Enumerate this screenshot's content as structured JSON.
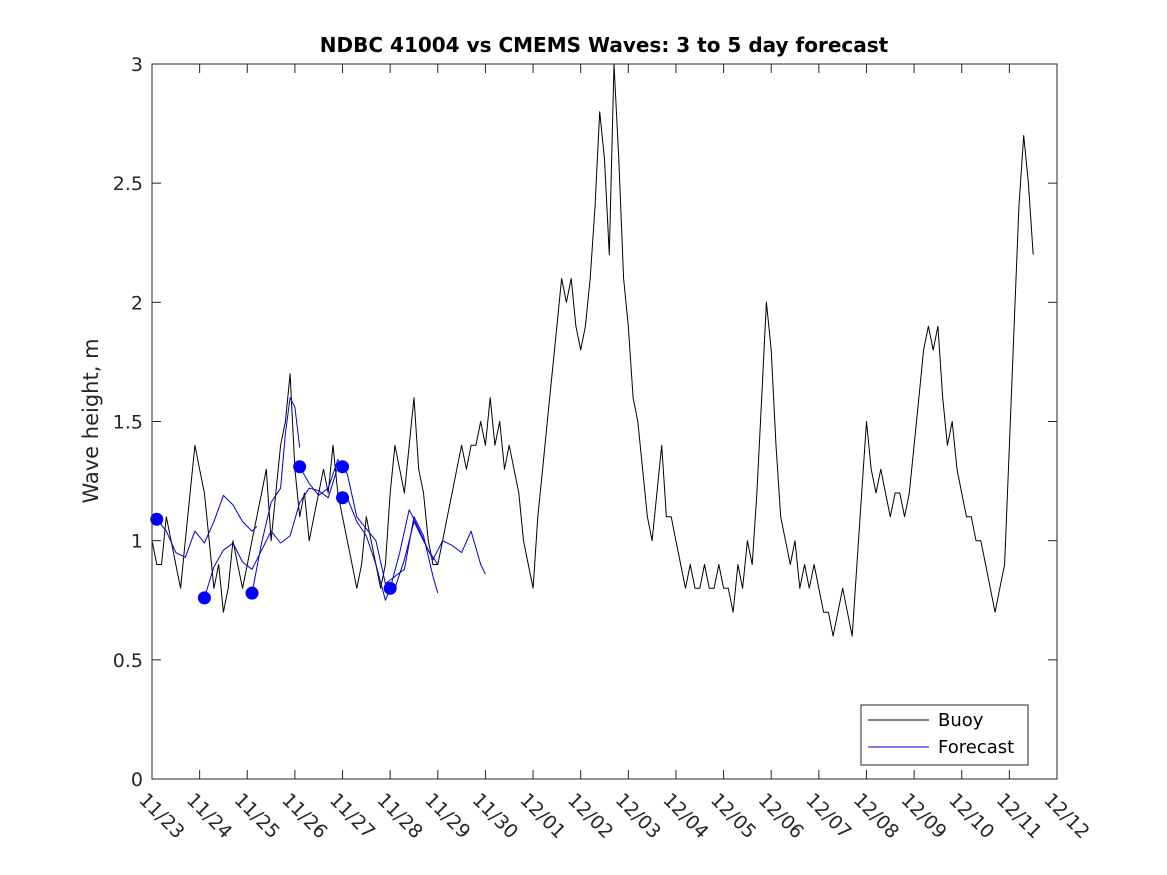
{
  "chart_data": {
    "type": "line",
    "title": "NDBC 41004 vs CMEMS Waves: 3 to 5 day forecast",
    "xlabel": "",
    "ylabel": "Wave height, m",
    "xlim": [
      0,
      19
    ],
    "ylim": [
      0,
      3
    ],
    "x_ticks": [
      {
        "x": 0,
        "label": "11/23"
      },
      {
        "x": 1,
        "label": "11/24"
      },
      {
        "x": 2,
        "label": "11/25"
      },
      {
        "x": 3,
        "label": "11/26"
      },
      {
        "x": 4,
        "label": "11/27"
      },
      {
        "x": 5,
        "label": "11/28"
      },
      {
        "x": 6,
        "label": "11/29"
      },
      {
        "x": 7,
        "label": "11/30"
      },
      {
        "x": 8,
        "label": "12/01"
      },
      {
        "x": 9,
        "label": "12/02"
      },
      {
        "x": 10,
        "label": "12/03"
      },
      {
        "x": 11,
        "label": "12/04"
      },
      {
        "x": 12,
        "label": "12/05"
      },
      {
        "x": 13,
        "label": "12/06"
      },
      {
        "x": 14,
        "label": "12/07"
      },
      {
        "x": 15,
        "label": "12/08"
      },
      {
        "x": 16,
        "label": "12/09"
      },
      {
        "x": 17,
        "label": "12/10"
      },
      {
        "x": 18,
        "label": "12/11"
      },
      {
        "x": 19,
        "label": "12/12"
      }
    ],
    "y_ticks": [
      {
        "y": 0,
        "label": "0"
      },
      {
        "y": 0.5,
        "label": "0.5"
      },
      {
        "y": 1,
        "label": "1"
      },
      {
        "y": 1.5,
        "label": "1.5"
      },
      {
        "y": 2,
        "label": "2"
      },
      {
        "y": 2.5,
        "label": "2.5"
      },
      {
        "y": 3,
        "label": "3"
      }
    ],
    "legend": {
      "position": "bottom-right",
      "entries": [
        {
          "label": "Buoy",
          "color": "#000000"
        },
        {
          "label": "Forecast",
          "color": "#0000cc"
        }
      ]
    },
    "series": [
      {
        "name": "Buoy",
        "color": "#000000",
        "points": [
          [
            0.0,
            1.0
          ],
          [
            0.1,
            0.9
          ],
          [
            0.2,
            0.9
          ],
          [
            0.3,
            1.1
          ],
          [
            0.4,
            1.0
          ],
          [
            0.5,
            0.9
          ],
          [
            0.6,
            0.8
          ],
          [
            0.7,
            1.0
          ],
          [
            0.8,
            1.2
          ],
          [
            0.9,
            1.4
          ],
          [
            1.0,
            1.3
          ],
          [
            1.1,
            1.2
          ],
          [
            1.2,
            1.0
          ],
          [
            1.3,
            0.8
          ],
          [
            1.4,
            0.9
          ],
          [
            1.5,
            0.7
          ],
          [
            1.6,
            0.8
          ],
          [
            1.7,
            1.0
          ],
          [
            1.8,
            0.9
          ],
          [
            1.9,
            0.8
          ],
          [
            2.0,
            0.9
          ],
          [
            2.1,
            1.0
          ],
          [
            2.2,
            1.1
          ],
          [
            2.3,
            1.2
          ],
          [
            2.4,
            1.3
          ],
          [
            2.5,
            1.0
          ],
          [
            2.6,
            1.2
          ],
          [
            2.7,
            1.4
          ],
          [
            2.8,
            1.5
          ],
          [
            2.9,
            1.7
          ],
          [
            3.0,
            1.3
          ],
          [
            3.1,
            1.1
          ],
          [
            3.2,
            1.2
          ],
          [
            3.3,
            1.0
          ],
          [
            3.4,
            1.1
          ],
          [
            3.5,
            1.2
          ],
          [
            3.6,
            1.3
          ],
          [
            3.7,
            1.2
          ],
          [
            3.8,
            1.4
          ],
          [
            3.9,
            1.2
          ],
          [
            4.0,
            1.1
          ],
          [
            4.1,
            1.0
          ],
          [
            4.2,
            0.9
          ],
          [
            4.3,
            0.8
          ],
          [
            4.4,
            0.9
          ],
          [
            4.5,
            1.1
          ],
          [
            4.6,
            1.0
          ],
          [
            4.7,
            0.9
          ],
          [
            4.8,
            0.8
          ],
          [
            4.9,
            0.9
          ],
          [
            5.0,
            1.2
          ],
          [
            5.1,
            1.4
          ],
          [
            5.2,
            1.3
          ],
          [
            5.3,
            1.2
          ],
          [
            5.4,
            1.4
          ],
          [
            5.5,
            1.6
          ],
          [
            5.6,
            1.3
          ],
          [
            5.7,
            1.2
          ],
          [
            5.8,
            1.0
          ],
          [
            5.9,
            0.9
          ],
          [
            6.0,
            0.9
          ],
          [
            6.1,
            1.0
          ],
          [
            6.2,
            1.1
          ],
          [
            6.3,
            1.2
          ],
          [
            6.4,
            1.3
          ],
          [
            6.5,
            1.4
          ],
          [
            6.6,
            1.3
          ],
          [
            6.7,
            1.4
          ],
          [
            6.8,
            1.4
          ],
          [
            6.9,
            1.5
          ],
          [
            7.0,
            1.4
          ],
          [
            7.1,
            1.6
          ],
          [
            7.2,
            1.4
          ],
          [
            7.3,
            1.5
          ],
          [
            7.4,
            1.3
          ],
          [
            7.5,
            1.4
          ],
          [
            7.6,
            1.3
          ],
          [
            7.7,
            1.2
          ],
          [
            7.8,
            1.0
          ],
          [
            7.9,
            0.9
          ],
          [
            8.0,
            0.8
          ],
          [
            8.1,
            1.1
          ],
          [
            8.2,
            1.3
          ],
          [
            8.3,
            1.5
          ],
          [
            8.4,
            1.7
          ],
          [
            8.5,
            1.9
          ],
          [
            8.6,
            2.1
          ],
          [
            8.7,
            2.0
          ],
          [
            8.8,
            2.1
          ],
          [
            8.9,
            1.9
          ],
          [
            9.0,
            1.8
          ],
          [
            9.1,
            1.9
          ],
          [
            9.2,
            2.1
          ],
          [
            9.3,
            2.4
          ],
          [
            9.4,
            2.8
          ],
          [
            9.5,
            2.6
          ],
          [
            9.6,
            2.2
          ],
          [
            9.7,
            3.0
          ],
          [
            9.8,
            2.6
          ],
          [
            9.9,
            2.1
          ],
          [
            10.0,
            1.9
          ],
          [
            10.1,
            1.6
          ],
          [
            10.2,
            1.5
          ],
          [
            10.3,
            1.3
          ],
          [
            10.4,
            1.1
          ],
          [
            10.5,
            1.0
          ],
          [
            10.6,
            1.2
          ],
          [
            10.7,
            1.4
          ],
          [
            10.8,
            1.1
          ],
          [
            10.9,
            1.1
          ],
          [
            11.0,
            1.0
          ],
          [
            11.1,
            0.9
          ],
          [
            11.2,
            0.8
          ],
          [
            11.3,
            0.9
          ],
          [
            11.4,
            0.8
          ],
          [
            11.5,
            0.8
          ],
          [
            11.6,
            0.9
          ],
          [
            11.7,
            0.8
          ],
          [
            11.8,
            0.8
          ],
          [
            11.9,
            0.9
          ],
          [
            12.0,
            0.8
          ],
          [
            12.1,
            0.8
          ],
          [
            12.2,
            0.7
          ],
          [
            12.3,
            0.9
          ],
          [
            12.4,
            0.8
          ],
          [
            12.5,
            1.0
          ],
          [
            12.6,
            0.9
          ],
          [
            12.7,
            1.2
          ],
          [
            12.8,
            1.6
          ],
          [
            12.9,
            2.0
          ],
          [
            13.0,
            1.8
          ],
          [
            13.1,
            1.4
          ],
          [
            13.2,
            1.1
          ],
          [
            13.3,
            1.0
          ],
          [
            13.4,
            0.9
          ],
          [
            13.5,
            1.0
          ],
          [
            13.6,
            0.8
          ],
          [
            13.7,
            0.9
          ],
          [
            13.8,
            0.8
          ],
          [
            13.9,
            0.9
          ],
          [
            14.0,
            0.8
          ],
          [
            14.1,
            0.7
          ],
          [
            14.2,
            0.7
          ],
          [
            14.3,
            0.6
          ],
          [
            14.4,
            0.7
          ],
          [
            14.5,
            0.8
          ],
          [
            14.6,
            0.7
          ],
          [
            14.7,
            0.6
          ],
          [
            14.8,
            0.9
          ],
          [
            14.9,
            1.2
          ],
          [
            15.0,
            1.5
          ],
          [
            15.1,
            1.3
          ],
          [
            15.2,
            1.2
          ],
          [
            15.3,
            1.3
          ],
          [
            15.4,
            1.2
          ],
          [
            15.5,
            1.1
          ],
          [
            15.6,
            1.2
          ],
          [
            15.7,
            1.2
          ],
          [
            15.8,
            1.1
          ],
          [
            15.9,
            1.2
          ],
          [
            16.0,
            1.4
          ],
          [
            16.1,
            1.6
          ],
          [
            16.2,
            1.8
          ],
          [
            16.3,
            1.9
          ],
          [
            16.4,
            1.8
          ],
          [
            16.5,
            1.9
          ],
          [
            16.6,
            1.6
          ],
          [
            16.7,
            1.4
          ],
          [
            16.8,
            1.5
          ],
          [
            16.9,
            1.3
          ],
          [
            17.0,
            1.2
          ],
          [
            17.1,
            1.1
          ],
          [
            17.2,
            1.1
          ],
          [
            17.3,
            1.0
          ],
          [
            17.4,
            1.0
          ],
          [
            17.5,
            0.9
          ],
          [
            17.6,
            0.8
          ],
          [
            17.7,
            0.7
          ],
          [
            17.8,
            0.8
          ],
          [
            17.9,
            0.9
          ],
          [
            18.0,
            1.4
          ],
          [
            18.1,
            1.9
          ],
          [
            18.2,
            2.4
          ],
          [
            18.3,
            2.7
          ],
          [
            18.4,
            2.5
          ],
          [
            18.5,
            2.2
          ]
        ]
      },
      {
        "name": "Forecast",
        "color": "#0000cc",
        "points": [
          [
            0.1,
            1.09
          ],
          [
            0.3,
            1.04
          ],
          [
            0.5,
            0.95
          ],
          [
            0.7,
            0.93
          ],
          [
            0.9,
            1.04
          ],
          [
            1.1,
            0.99
          ],
          [
            1.3,
            1.08
          ],
          [
            1.5,
            1.19
          ],
          [
            1.7,
            1.15
          ],
          [
            1.9,
            1.08
          ],
          [
            2.1,
            1.04
          ],
          [
            2.2,
            1.06
          ]
        ]
      },
      {
        "name": "Forecast",
        "color": "#0000cc",
        "points": [
          [
            1.1,
            0.76
          ],
          [
            1.3,
            0.89
          ],
          [
            1.5,
            0.96
          ],
          [
            1.7,
            0.99
          ],
          [
            1.9,
            0.91
          ],
          [
            2.1,
            0.88
          ],
          [
            2.3,
            0.96
          ],
          [
            2.5,
            1.04
          ],
          [
            2.7,
            0.99
          ],
          [
            2.9,
            1.02
          ],
          [
            3.1,
            1.16
          ],
          [
            3.3,
            1.22
          ],
          [
            3.5,
            1.21
          ],
          [
            3.7,
            1.18
          ],
          [
            3.9,
            1.31
          ]
        ]
      },
      {
        "name": "Forecast",
        "color": "#0000cc",
        "points": [
          [
            2.1,
            0.78
          ],
          [
            2.3,
            0.99
          ],
          [
            2.5,
            1.16
          ],
          [
            2.7,
            1.22
          ],
          [
            2.8,
            1.45
          ],
          [
            2.9,
            1.6
          ],
          [
            3.0,
            1.56
          ],
          [
            3.1,
            1.39
          ]
        ]
      },
      {
        "name": "Forecast",
        "color": "#0000cc",
        "points": [
          [
            3.1,
            1.31
          ],
          [
            3.3,
            1.24
          ],
          [
            3.5,
            1.19
          ],
          [
            3.7,
            1.22
          ],
          [
            3.9,
            1.34
          ],
          [
            4.1,
            1.28
          ],
          [
            4.3,
            1.1
          ],
          [
            4.5,
            1.05
          ],
          [
            4.7,
            1.0
          ],
          [
            4.9,
            0.82
          ],
          [
            5.1,
            0.85
          ],
          [
            5.3,
            0.88
          ],
          [
            5.5,
            1.1
          ],
          [
            5.7,
            1.02
          ],
          [
            5.9,
            0.85
          ],
          [
            6.0,
            0.78
          ]
        ]
      },
      {
        "name": "Forecast",
        "color": "#0000cc",
        "points": [
          [
            4.1,
            1.18
          ],
          [
            4.3,
            1.08
          ],
          [
            4.5,
            1.02
          ],
          [
            4.7,
            0.9
          ],
          [
            4.9,
            0.75
          ],
          [
            5.0,
            0.8
          ],
          [
            5.2,
            0.95
          ],
          [
            5.4,
            1.13
          ],
          [
            5.6,
            1.05
          ],
          [
            5.8,
            0.96
          ],
          [
            6.0,
            0.9
          ]
        ]
      },
      {
        "name": "Forecast",
        "color": "#0000cc",
        "points": [
          [
            5.1,
            0.8
          ],
          [
            5.3,
            0.92
          ],
          [
            5.5,
            1.08
          ],
          [
            5.7,
            1.0
          ],
          [
            5.9,
            0.92
          ],
          [
            6.1,
            1.0
          ],
          [
            6.3,
            0.98
          ],
          [
            6.5,
            0.95
          ],
          [
            6.7,
            1.04
          ],
          [
            6.9,
            0.9
          ],
          [
            7.0,
            0.86
          ]
        ]
      }
    ],
    "markers": {
      "color": "#0000ff",
      "points": [
        [
          0.1,
          1.09
        ],
        [
          1.1,
          0.76
        ],
        [
          2.1,
          0.78
        ],
        [
          3.1,
          1.31
        ],
        [
          4.0,
          1.31
        ],
        [
          4.0,
          1.18
        ],
        [
          5.0,
          0.8
        ]
      ]
    }
  }
}
